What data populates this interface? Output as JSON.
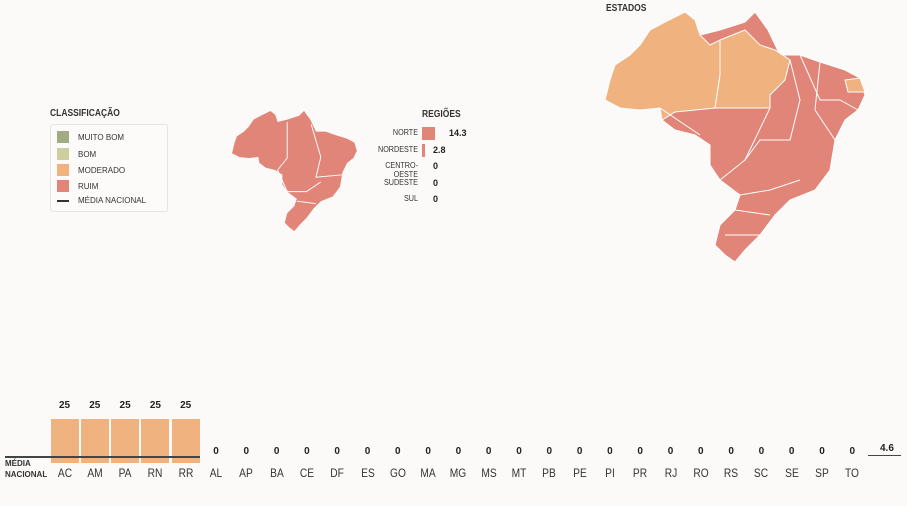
{
  "legend": {
    "title": "CLASSIFICAÇÃO",
    "items": [
      {
        "label": "MUITO BOM",
        "color": "#a3ab85"
      },
      {
        "label": "BOM",
        "color": "#cdcf9f"
      },
      {
        "label": "MODERADO",
        "color": "#f0b27f"
      },
      {
        "label": "RUIM",
        "color": "#e08577"
      }
    ],
    "line_label": "MÉDIA NACIONAL"
  },
  "regions": {
    "title": "REGIÕES",
    "items": [
      {
        "name": "NORTE",
        "value": "14.3",
        "num": 14.3
      },
      {
        "name": "NORDESTE",
        "value": "2.8",
        "num": 2.8
      },
      {
        "name": "CENTRO-OESTE",
        "value": "0",
        "num": 0
      },
      {
        "name": "SUDESTE",
        "value": "0",
        "num": 0
      },
      {
        "name": "SUL",
        "value": "0",
        "num": 0
      }
    ]
  },
  "states_title": "ESTADOS",
  "chart_data": {
    "type": "bar",
    "categories": [
      "AC",
      "AM",
      "PA",
      "RN",
      "RR",
      "AL",
      "AP",
      "BA",
      "CE",
      "DF",
      "ES",
      "GO",
      "MA",
      "MG",
      "MS",
      "MT",
      "PB",
      "PE",
      "PI",
      "PR",
      "RJ",
      "RO",
      "RS",
      "SC",
      "SE",
      "SP",
      "TO"
    ],
    "values": [
      25,
      25,
      25,
      25,
      25,
      0,
      0,
      0,
      0,
      0,
      0,
      0,
      0,
      0,
      0,
      0,
      0,
      0,
      0,
      0,
      0,
      0,
      0,
      0,
      0,
      0,
      0
    ],
    "value_labels": [
      "25",
      "25",
      "25",
      "25",
      "25",
      "0",
      "0",
      "0",
      "0",
      "0",
      "0",
      "0",
      "0",
      "0",
      "0",
      "0",
      "0",
      "0",
      "0",
      "0",
      "0",
      "0",
      "0",
      "0",
      "0",
      "0",
      "0"
    ],
    "reference_line": {
      "label_line1": "MÉDIA",
      "label_line2": "NACIONAL",
      "value": 4.6,
      "value_label": "4.6"
    },
    "ylim": [
      0,
      25
    ],
    "bar_color": "#f0b27f"
  }
}
